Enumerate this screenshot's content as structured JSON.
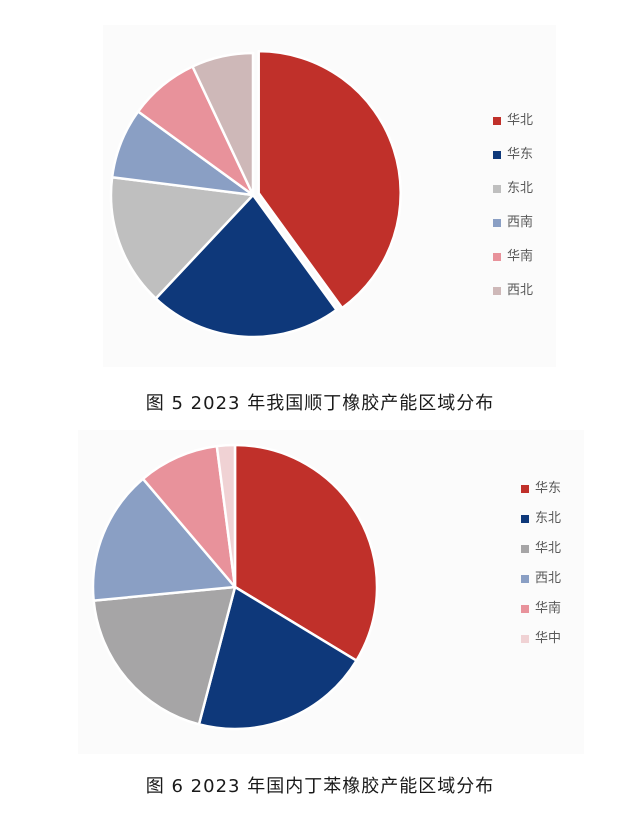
{
  "chart_data": [
    {
      "type": "pie",
      "title": "图 5  2023 年我国顺丁橡胶产能区域分布",
      "series": [
        {
          "values": [
            40,
            22,
            15,
            8,
            8,
            7
          ]
        }
      ],
      "categories": [
        "华北",
        "华东",
        "东北",
        "西南",
        "华南",
        "西北"
      ],
      "colors": [
        "#c0302a",
        "#0e387a",
        "#bfbfbf",
        "#8a9fc4",
        "#e8929b",
        "#ceb8b8"
      ],
      "legend": "right",
      "exploded_slice": "华北"
    },
    {
      "type": "pie",
      "title": "图 6  2023 年国内丁苯橡胶产能区域分布",
      "series": [
        {
          "values": [
            33,
            20,
            19,
            15,
            9,
            2
          ]
        }
      ],
      "categories": [
        "华东",
        "东北",
        "华北",
        "西北",
        "华南",
        "华中"
      ],
      "colors": [
        "#c0302a",
        "#0e387a",
        "#a6a5a6",
        "#8a9fc4",
        "#e8929b",
        "#f0d2d4"
      ],
      "legend": "right"
    }
  ]
}
